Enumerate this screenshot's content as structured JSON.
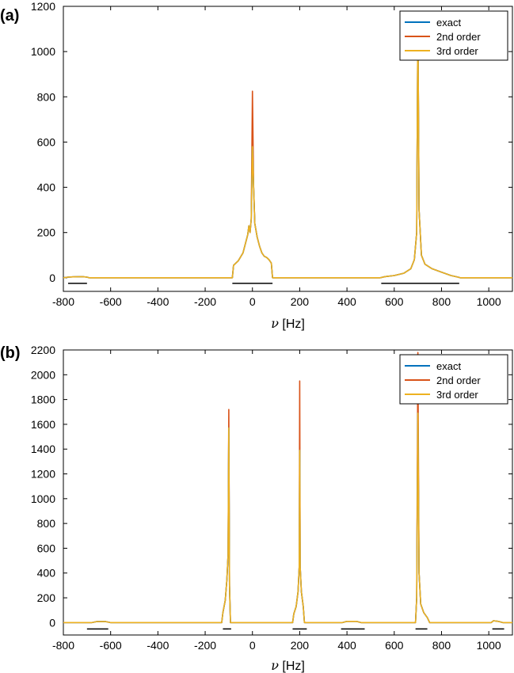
{
  "colors": {
    "exact": "#0072bd",
    "second": "#d95319",
    "third": "#edb120"
  },
  "chart_data": [
    {
      "panel": "(a)",
      "type": "line",
      "xlabel_symbol": "ν",
      "xlabel_unit": "[Hz]",
      "xlim": [
        -800,
        1100
      ],
      "ylim": [
        -60,
        1200
      ],
      "xticks": [
        -800,
        -600,
        -400,
        -200,
        0,
        200,
        400,
        600,
        800,
        1000
      ],
      "yticks": [
        0,
        200,
        400,
        600,
        800,
        1000,
        1200
      ],
      "legend_position": "top-right",
      "series": [
        {
          "name": "exact",
          "color_key": "exact",
          "peaks": [
            [
              0,
              580
            ],
            [
              700,
              1160
            ]
          ]
        },
        {
          "name": "2nd order",
          "color_key": "second",
          "peaks": [
            [
              0,
              825
            ],
            [
              700,
              1170
            ]
          ]
        },
        {
          "name": "3rd order",
          "color_key": "third",
          "peaks": [
            [
              0,
              580
            ],
            [
              700,
              1160
            ]
          ]
        }
      ],
      "baseline_points": [
        [
          -800,
          0
        ],
        [
          -780,
          3
        ],
        [
          -760,
          4
        ],
        [
          -720,
          5
        ],
        [
          -700,
          3
        ],
        [
          -690,
          0
        ],
        [
          -85,
          0
        ],
        [
          -80,
          55
        ],
        [
          -60,
          75
        ],
        [
          -40,
          110
        ],
        [
          -30,
          150
        ],
        [
          -20,
          190
        ],
        [
          -15,
          230
        ],
        [
          -10,
          200
        ],
        [
          -5,
          260
        ],
        [
          0,
          580
        ],
        [
          5,
          400
        ],
        [
          10,
          240
        ],
        [
          20,
          180
        ],
        [
          30,
          140
        ],
        [
          40,
          110
        ],
        [
          50,
          95
        ],
        [
          60,
          90
        ],
        [
          70,
          80
        ],
        [
          80,
          65
        ],
        [
          85,
          0
        ],
        [
          540,
          0
        ],
        [
          560,
          5
        ],
        [
          600,
          10
        ],
        [
          640,
          20
        ],
        [
          670,
          40
        ],
        [
          685,
          80
        ],
        [
          695,
          200
        ],
        [
          700,
          1160
        ],
        [
          705,
          300
        ],
        [
          715,
          100
        ],
        [
          730,
          60
        ],
        [
          760,
          40
        ],
        [
          800,
          25
        ],
        [
          840,
          10
        ],
        [
          870,
          3
        ],
        [
          880,
          0
        ],
        [
          1100,
          0
        ]
      ],
      "bars": [
        [
          -780,
          -700
        ],
        [
          -85,
          85
        ],
        [
          545,
          875
        ]
      ]
    },
    {
      "panel": "(b)",
      "type": "line",
      "xlabel_symbol": "ν",
      "xlabel_unit": "[Hz]",
      "xlim": [
        -800,
        1100
      ],
      "ylim": [
        -100,
        2200
      ],
      "xticks": [
        -800,
        -600,
        -400,
        -200,
        0,
        200,
        400,
        600,
        800,
        1000
      ],
      "yticks": [
        0,
        200,
        400,
        600,
        800,
        1000,
        1200,
        1400,
        1600,
        1800,
        2000,
        2200
      ],
      "legend_position": "top-right",
      "series": [
        {
          "name": "exact",
          "color_key": "exact",
          "peaks": [
            [
              -100,
              1570
            ],
            [
              200,
              1390
            ],
            [
              700,
              1690
            ]
          ]
        },
        {
          "name": "2nd order",
          "color_key": "second",
          "peaks": [
            [
              -100,
              1720
            ],
            [
              200,
              1950
            ],
            [
              700,
              2180
            ]
          ]
        },
        {
          "name": "3rd order",
          "color_key": "third",
          "peaks": [
            [
              -100,
              1570
            ],
            [
              200,
              1390
            ],
            [
              700,
              1690
            ]
          ]
        }
      ],
      "baseline_points": [
        [
          -800,
          0
        ],
        [
          -680,
          0
        ],
        [
          -660,
          8
        ],
        [
          -620,
          8
        ],
        [
          -600,
          0
        ],
        [
          -130,
          0
        ],
        [
          -125,
          80
        ],
        [
          -115,
          180
        ],
        [
          -108,
          350
        ],
        [
          -103,
          550
        ],
        [
          -100,
          1570
        ],
        [
          -97,
          300
        ],
        [
          -93,
          0
        ],
        [
          170,
          0
        ],
        [
          175,
          70
        ],
        [
          185,
          130
        ],
        [
          193,
          250
        ],
        [
          198,
          450
        ],
        [
          200,
          1390
        ],
        [
          202,
          450
        ],
        [
          207,
          250
        ],
        [
          215,
          130
        ],
        [
          220,
          0
        ],
        [
          380,
          0
        ],
        [
          400,
          10
        ],
        [
          440,
          10
        ],
        [
          460,
          0
        ],
        [
          690,
          0
        ],
        [
          695,
          200
        ],
        [
          700,
          1690
        ],
        [
          705,
          400
        ],
        [
          712,
          150
        ],
        [
          725,
          80
        ],
        [
          740,
          40
        ],
        [
          750,
          0
        ],
        [
          1010,
          0
        ],
        [
          1020,
          15
        ],
        [
          1040,
          10
        ],
        [
          1060,
          0
        ],
        [
          1100,
          0
        ]
      ],
      "bars": [
        [
          -700,
          -610
        ],
        [
          -125,
          -90
        ],
        [
          170,
          230
        ],
        [
          375,
          475
        ],
        [
          690,
          740
        ],
        [
          1015,
          1065
        ]
      ]
    }
  ]
}
